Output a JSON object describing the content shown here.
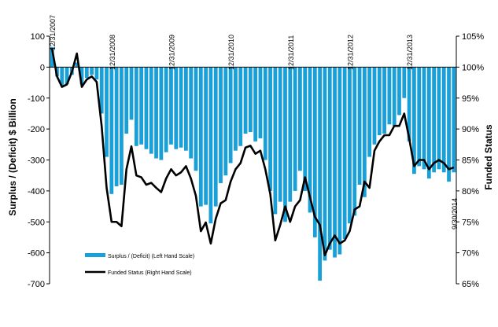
{
  "chart_data": {
    "type": "bar",
    "left_axis": {
      "label": "Surplus / (Deficit) $ Billion",
      "min": -700,
      "max": 100,
      "ticks": [
        100,
        0,
        -100,
        -200,
        -300,
        -400,
        -500,
        -600,
        -700
      ],
      "tick_labels": [
        "100",
        "0",
        "-100",
        "-200",
        "-300",
        "-400",
        "-500",
        "-600",
        "-700"
      ]
    },
    "right_axis": {
      "label": "Funded Status",
      "min": 65,
      "max": 105,
      "ticks": [
        105,
        100,
        95,
        90,
        85,
        80,
        75,
        70,
        65
      ],
      "tick_labels": [
        "105%",
        "100%",
        "95%",
        "90%",
        "85%",
        "80%",
        "75%",
        "70%",
        "65%"
      ]
    },
    "x_date_labels": [
      {
        "text": "12/31/2007",
        "index": 0
      },
      {
        "text": "12/31/2008",
        "index": 12
      },
      {
        "text": "12/31/2009",
        "index": 24
      },
      {
        "text": "12/31/2010",
        "index": 36
      },
      {
        "text": "12/31/2011",
        "index": 48
      },
      {
        "text": "12/31/2012",
        "index": 60
      },
      {
        "text": "12/31/2013",
        "index": 72
      },
      {
        "text": "9/30/2014",
        "index": 81
      }
    ],
    "grid": false,
    "legend_position": "bottom-left",
    "series": [
      {
        "name": "Surplus / (Deficit) (Left Hand Scale)",
        "type": "bar",
        "axis": "left",
        "color": "#1aa0d8",
        "values": [
          65,
          -30,
          -60,
          -55,
          -25,
          15,
          -55,
          -35,
          -25,
          -40,
          -150,
          -290,
          -410,
          -385,
          -380,
          -215,
          -170,
          -255,
          -250,
          -265,
          -280,
          -295,
          -300,
          -275,
          -250,
          -265,
          -260,
          -270,
          -295,
          -335,
          -450,
          -445,
          -505,
          -450,
          -375,
          -350,
          -310,
          -270,
          -255,
          -215,
          -210,
          -240,
          -230,
          -300,
          -400,
          -475,
          -435,
          -500,
          -435,
          -400,
          -335,
          -400,
          -470,
          -550,
          -690,
          -625,
          -590,
          -615,
          -605,
          -555,
          -505,
          -480,
          -380,
          -420,
          -290,
          -250,
          -220,
          -215,
          -185,
          -190,
          -155,
          -100,
          -240,
          -345,
          -320,
          -330,
          -360,
          -340,
          -330,
          -340,
          -370,
          -340
        ]
      },
      {
        "name": "Funded Status (Right Hand Scale)",
        "type": "line",
        "axis": "right",
        "color": "#000000",
        "values": [
          103,
          98.5,
          96.8,
          97.2,
          99.2,
          102.2,
          96.8,
          98.0,
          98.5,
          97.6,
          90.5,
          80.5,
          75.0,
          75.0,
          74.3,
          83.5,
          87.2,
          82.5,
          82.2,
          81.0,
          81.3,
          80.5,
          79.8,
          82.0,
          83.5,
          82.5,
          83.0,
          84.0,
          82.0,
          79.2,
          73.5,
          74.9,
          71.5,
          75.5,
          78.0,
          78.5,
          81.5,
          83.5,
          84.5,
          87.0,
          87.3,
          86.0,
          86.5,
          83.5,
          79.5,
          72.0,
          74.5,
          77.5,
          75.0,
          77.5,
          78.5,
          82.2,
          79.0,
          75.8,
          74.5,
          69.6,
          71.5,
          72.8,
          71.5,
          72.0,
          73.5,
          77.0,
          77.5,
          81.5,
          80.5,
          86.5,
          88.0,
          89.0,
          89.0,
          90.5,
          90.5,
          92.5,
          88.5,
          84.0,
          85.0,
          85.0,
          83.5,
          84.5,
          85.0,
          84.5,
          83.5,
          83.8
        ]
      }
    ]
  }
}
